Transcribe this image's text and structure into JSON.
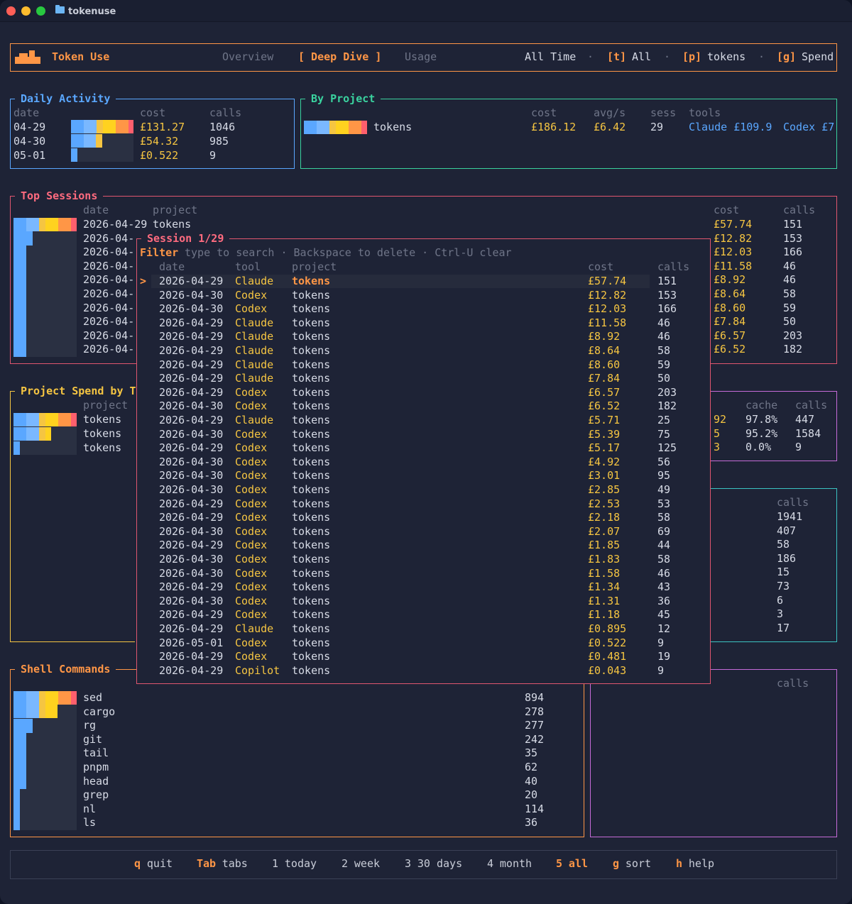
{
  "window": {
    "title": "tokenuse",
    "traffic_lights": [
      "#ff5f57",
      "#febc2e",
      "#28c840"
    ]
  },
  "header": {
    "app_name": "Token Use",
    "tabs": [
      "Overview",
      "[ Deep Dive ]",
      "Usage"
    ],
    "range": "All Time",
    "sep": "·",
    "toggles": [
      {
        "key": "[t]",
        "label": "All"
      },
      {
        "key": "[p]",
        "label": "tokens"
      },
      {
        "key": "[g]",
        "label": "Spend"
      }
    ]
  },
  "daily": {
    "title": "Daily Activity",
    "cols": [
      "date",
      "cost",
      "calls"
    ],
    "rows": [
      {
        "date": "04-29",
        "cost": "£131.27",
        "calls": "1046"
      },
      {
        "date": "04-30",
        "cost": "£54.32",
        "calls": "985"
      },
      {
        "date": "05-01",
        "cost": "£0.522",
        "calls": "9"
      }
    ]
  },
  "by_project": {
    "title": "By Project",
    "cols": [
      "cost",
      "avg/s",
      "sess",
      "tools"
    ],
    "row": {
      "name": "tokens",
      "cost": "£186.12",
      "avg": "£6.42",
      "sess": "29",
      "tool1": "Claude £109.9",
      "tool2": "Codex £7"
    }
  },
  "top_sessions": {
    "title": "Top Sessions",
    "cols": [
      "date",
      "project",
      "cost",
      "calls"
    ],
    "first": {
      "date": "2026-04-29",
      "project": "tokens"
    },
    "partial_dates": [
      "2026-04-",
      "2026-04-",
      "2026-04-",
      "2026-04-",
      "2026-04-",
      "2026-04-",
      "2026-04-",
      "2026-04-",
      "2026-04-"
    ],
    "right": [
      [
        "£57.74",
        "151"
      ],
      [
        "£12.82",
        "153"
      ],
      [
        "£12.03",
        "166"
      ],
      [
        "£11.58",
        "46"
      ],
      [
        "£8.92",
        "46"
      ],
      [
        "£8.64",
        "58"
      ],
      [
        "£8.60",
        "59"
      ],
      [
        "£7.84",
        "50"
      ],
      [
        "£6.57",
        "203"
      ],
      [
        "£6.52",
        "182"
      ]
    ]
  },
  "project_spend": {
    "title": "Project Spend by T",
    "col": "project",
    "rows": [
      "tokens",
      "tokens",
      "tokens"
    ],
    "right_cols": [
      "cache",
      "calls"
    ],
    "right": [
      [
        "92",
        "97.8%",
        "447"
      ],
      [
        "5",
        "95.2%",
        "1584"
      ],
      [
        "3",
        "0.0%",
        "9"
      ]
    ]
  },
  "teal_panel": {
    "col": "calls",
    "values": [
      "1941",
      "407",
      "58",
      "186",
      "15",
      "73",
      "6",
      "3",
      "17"
    ]
  },
  "shell": {
    "title": "Shell Commands",
    "rows": [
      [
        "sed",
        "894"
      ],
      [
        "cargo",
        "278"
      ],
      [
        "rg",
        "277"
      ],
      [
        "git",
        "242"
      ],
      [
        "tail",
        "35"
      ],
      [
        "pnpm",
        "62"
      ],
      [
        "head",
        "40"
      ],
      [
        "grep",
        "20"
      ],
      [
        "nl",
        "114"
      ],
      [
        "ls",
        "36"
      ]
    ]
  },
  "purple_panel": {
    "col": "calls"
  },
  "session_popup": {
    "title": "Session 1/29",
    "filter_label": "Filter",
    "filter_hint": "type to search · Backspace to delete · Ctrl-U clear",
    "cols": [
      "date",
      "tool",
      "project",
      "cost",
      "calls"
    ],
    "cursor": ">",
    "rows": [
      [
        "2026-04-29",
        "Claude",
        "tokens",
        "£57.74",
        "151"
      ],
      [
        "2026-04-30",
        "Codex",
        "tokens",
        "£12.82",
        "153"
      ],
      [
        "2026-04-30",
        "Codex",
        "tokens",
        "£12.03",
        "166"
      ],
      [
        "2026-04-29",
        "Claude",
        "tokens",
        "£11.58",
        "46"
      ],
      [
        "2026-04-29",
        "Claude",
        "tokens",
        "£8.92",
        "46"
      ],
      [
        "2026-04-29",
        "Claude",
        "tokens",
        "£8.64",
        "58"
      ],
      [
        "2026-04-29",
        "Claude",
        "tokens",
        "£8.60",
        "59"
      ],
      [
        "2026-04-29",
        "Claude",
        "tokens",
        "£7.84",
        "50"
      ],
      [
        "2026-04-29",
        "Codex",
        "tokens",
        "£6.57",
        "203"
      ],
      [
        "2026-04-30",
        "Codex",
        "tokens",
        "£6.52",
        "182"
      ],
      [
        "2026-04-29",
        "Claude",
        "tokens",
        "£5.71",
        "25"
      ],
      [
        "2026-04-30",
        "Codex",
        "tokens",
        "£5.39",
        "75"
      ],
      [
        "2026-04-29",
        "Codex",
        "tokens",
        "£5.17",
        "125"
      ],
      [
        "2026-04-30",
        "Codex",
        "tokens",
        "£4.92",
        "56"
      ],
      [
        "2026-04-30",
        "Codex",
        "tokens",
        "£3.01",
        "95"
      ],
      [
        "2026-04-30",
        "Codex",
        "tokens",
        "£2.85",
        "49"
      ],
      [
        "2026-04-29",
        "Codex",
        "tokens",
        "£2.53",
        "53"
      ],
      [
        "2026-04-29",
        "Codex",
        "tokens",
        "£2.18",
        "58"
      ],
      [
        "2026-04-30",
        "Codex",
        "tokens",
        "£2.07",
        "69"
      ],
      [
        "2026-04-29",
        "Codex",
        "tokens",
        "£1.85",
        "44"
      ],
      [
        "2026-04-30",
        "Codex",
        "tokens",
        "£1.83",
        "58"
      ],
      [
        "2026-04-30",
        "Codex",
        "tokens",
        "£1.58",
        "46"
      ],
      [
        "2026-04-29",
        "Codex",
        "tokens",
        "£1.34",
        "43"
      ],
      [
        "2026-04-30",
        "Codex",
        "tokens",
        "£1.31",
        "36"
      ],
      [
        "2026-04-29",
        "Codex",
        "tokens",
        "£1.18",
        "45"
      ],
      [
        "2026-04-29",
        "Claude",
        "tokens",
        "£0.895",
        "12"
      ],
      [
        "2026-05-01",
        "Codex",
        "tokens",
        "£0.522",
        "9"
      ],
      [
        "2026-04-29",
        "Codex",
        "tokens",
        "£0.481",
        "19"
      ],
      [
        "2026-04-29",
        "Copilot",
        "tokens",
        "£0.043",
        "9"
      ]
    ]
  },
  "footer": [
    {
      "key": "q",
      "label": "quit",
      "hi": true
    },
    {
      "key": "Tab",
      "label": "tabs",
      "hi": true
    },
    {
      "key": "1",
      "label": "today",
      "hi": false
    },
    {
      "key": "2",
      "label": "week",
      "hi": false
    },
    {
      "key": "3",
      "label": "30 days",
      "hi": false
    },
    {
      "key": "4",
      "label": "month",
      "hi": false
    },
    {
      "key": "5",
      "label": "all",
      "hi": true,
      "active": true
    },
    {
      "key": "g",
      "label": "sort",
      "hi": true
    },
    {
      "key": "h",
      "label": "help",
      "hi": true
    }
  ],
  "colors": {
    "orange": "#ff9646",
    "yellow": "#f5c542",
    "blue": "#5aa7ff",
    "green": "#3ad29f",
    "red": "#e0566f",
    "purple": "#c56bd8",
    "teal": "#3bc3c3"
  }
}
